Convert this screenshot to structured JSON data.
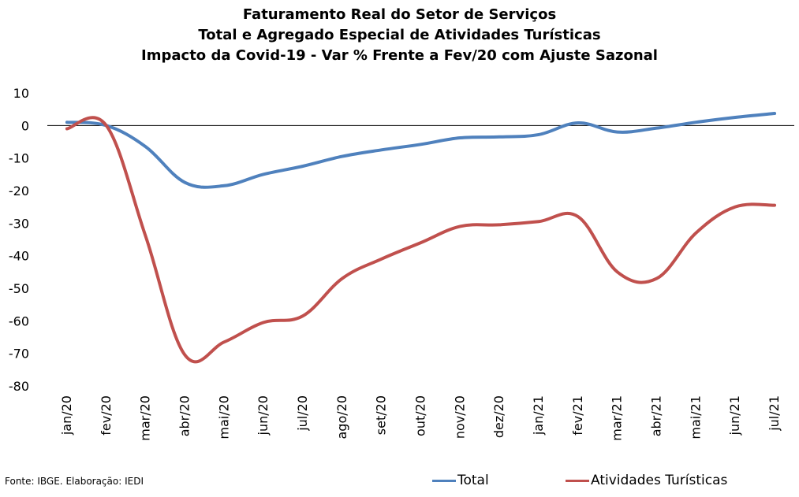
{
  "chart_data": {
    "type": "line",
    "title_lines": [
      "Faturamento Real do Setor de Serviços",
      "Total e Agregado Especial de Atividades Turísticas",
      "Impacto da Covid-19 - Var % Frente a Fev/20 com Ajuste Sazonal"
    ],
    "categories": [
      "jan/20",
      "fev/20",
      "mar/20",
      "abr/20",
      "mai/20",
      "jun/20",
      "jul/20",
      "ago/20",
      "set/20",
      "out/20",
      "nov/20",
      "dez/20",
      "jan/21",
      "fev/21",
      "mar/21",
      "abr/21",
      "mai/21",
      "jun/21",
      "jul/21"
    ],
    "series": [
      {
        "name": "Total",
        "color": "#4f81bd",
        "values": [
          1.0,
          0.0,
          -6.5,
          -17.5,
          -18.5,
          -15.0,
          -12.5,
          -9.5,
          -7.5,
          -5.8,
          -3.8,
          -3.5,
          -2.8,
          0.8,
          -2.0,
          -0.8,
          1.0,
          2.5,
          3.7
        ]
      },
      {
        "name": "Atividades Turísticas",
        "color": "#c0504d",
        "values": [
          -1.0,
          0.0,
          -34.0,
          -70.5,
          -66.5,
          -60.5,
          -58.5,
          -47.0,
          -41.0,
          -36.0,
          -31.0,
          -30.5,
          -29.5,
          -28.0,
          -45.0,
          -47.0,
          -33.0,
          -25.0,
          -24.5
        ]
      }
    ],
    "ylim": [
      -80,
      10
    ],
    "yticks": [
      10,
      0,
      -10,
      -20,
      -30,
      -40,
      -50,
      -60,
      -70,
      -80
    ],
    "xlabel": "",
    "ylabel": "",
    "grid": false,
    "legend_position": "bottom-right"
  },
  "legend": {
    "total_label": "Total",
    "tur_label": "Atividades Turísticas"
  },
  "source_note": "Fonte: IBGE. Elaboração: IEDI"
}
